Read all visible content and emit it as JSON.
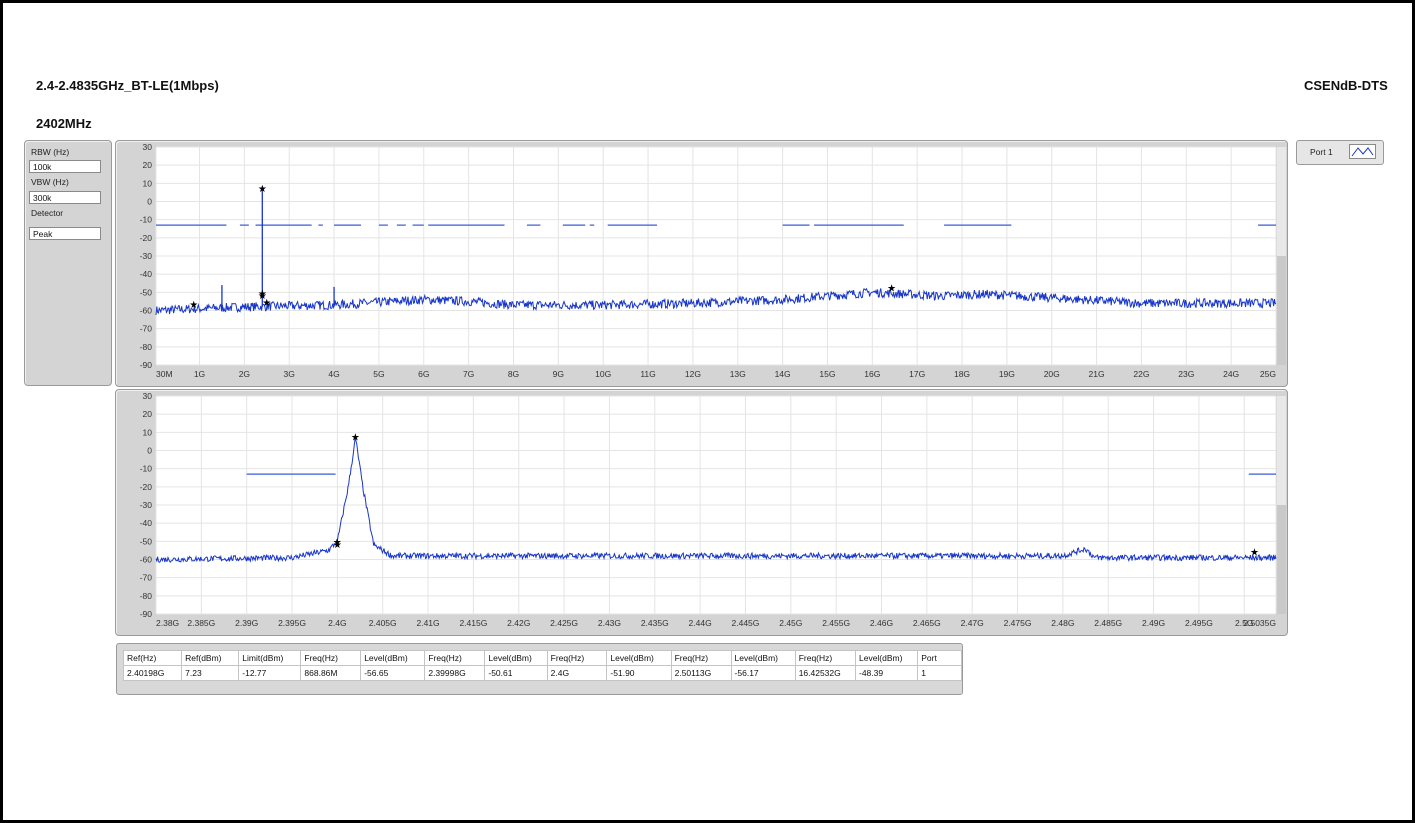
{
  "header": {
    "title": "2.4-2.4835GHz_BT-LE(1Mbps)",
    "test_name": "CSENdB-DTS",
    "channel": "2402MHz"
  },
  "settings": {
    "rbw_label": "RBW (Hz)",
    "rbw_value": "100k",
    "vbw_label": "VBW (Hz)",
    "vbw_value": "300k",
    "detector_label": "Detector",
    "detector_value": "Peak"
  },
  "legend": {
    "port_label": "Port 1",
    "trace_color": "#1836c8"
  },
  "colors": {
    "trace": "#1836c8",
    "limit": "#3a5ad8",
    "grid": "#e4e4e4",
    "plot_bg": "#ffffff",
    "panel": "#d4d4d4"
  },
  "chart_data": [
    {
      "type": "line",
      "name": "overview",
      "xlim": [
        0.03,
        25
      ],
      "ylim": [
        -90,
        30
      ],
      "x_tick_values": [
        0.03,
        1,
        2,
        3,
        4,
        5,
        6,
        7,
        8,
        9,
        10,
        11,
        12,
        13,
        14,
        15,
        16,
        17,
        18,
        19,
        20,
        21,
        22,
        23,
        24,
        25
      ],
      "x_tick_labels": [
        "30M",
        "1G",
        "2G",
        "3G",
        "4G",
        "5G",
        "6G",
        "7G",
        "8G",
        "9G",
        "10G",
        "11G",
        "12G",
        "13G",
        "14G",
        "15G",
        "16G",
        "17G",
        "18G",
        "19G",
        "20G",
        "21G",
        "22G",
        "23G",
        "24G",
        "25G"
      ],
      "y_ticks": [
        30,
        20,
        10,
        0,
        -10,
        -20,
        -30,
        -40,
        -50,
        -60,
        -70,
        -80,
        -90
      ],
      "x_unit": "GHz",
      "limit_level": -13,
      "limit_segments": [
        [
          0.03,
          1.6
        ],
        [
          1.9,
          2.1
        ],
        [
          2.25,
          3.5
        ],
        [
          3.65,
          3.75
        ],
        [
          4.0,
          4.6
        ],
        [
          5.0,
          5.2
        ],
        [
          5.4,
          5.6
        ],
        [
          5.75,
          6.0
        ],
        [
          6.1,
          7.8
        ],
        [
          8.3,
          8.6
        ],
        [
          9.1,
          9.6
        ],
        [
          9.7,
          9.8
        ],
        [
          10.1,
          11.2
        ],
        [
          14.0,
          14.6
        ],
        [
          14.7,
          16.7
        ],
        [
          17.6,
          19.1
        ],
        [
          24.6,
          25.2
        ],
        [
          26.4,
          26.9
        ],
        [
          27.5,
          28.5
        ]
      ],
      "trace": {
        "baseline": [
          [
            0.03,
            -60
          ],
          [
            2,
            -58
          ],
          [
            4,
            -57
          ],
          [
            6,
            -54
          ],
          [
            7,
            -55
          ],
          [
            8,
            -57
          ],
          [
            10,
            -57
          ],
          [
            12,
            -56
          ],
          [
            14,
            -54
          ],
          [
            16,
            -50
          ],
          [
            17.5,
            -52
          ],
          [
            18.5,
            -51
          ],
          [
            20,
            -53
          ],
          [
            22,
            -56
          ],
          [
            25,
            -56
          ]
        ],
        "noise_dbm": 2.5
      },
      "spikes": [
        [
          1.5,
          -46
        ],
        [
          2.4,
          7
        ],
        [
          4.0,
          -47
        ]
      ],
      "markers": [
        [
          0.87,
          -57
        ],
        [
          2.4,
          7
        ],
        [
          2.4,
          -51
        ],
        [
          2.4,
          -52
        ],
        [
          2.5,
          -56
        ],
        [
          16.43,
          -48
        ]
      ]
    },
    {
      "type": "line",
      "name": "zoom",
      "xlim": [
        2.38,
        2.5035
      ],
      "ylim": [
        -90,
        30
      ],
      "x_tick_values": [
        2.38,
        2.385,
        2.39,
        2.395,
        2.4,
        2.405,
        2.41,
        2.415,
        2.42,
        2.425,
        2.43,
        2.435,
        2.44,
        2.445,
        2.45,
        2.455,
        2.46,
        2.465,
        2.47,
        2.475,
        2.48,
        2.485,
        2.49,
        2.495,
        2.5,
        2.5035
      ],
      "x_tick_labels": [
        "2.38G",
        "2.385G",
        "2.39G",
        "2.395G",
        "2.4G",
        "2.405G",
        "2.41G",
        "2.415G",
        "2.42G",
        "2.425G",
        "2.43G",
        "2.435G",
        "2.44G",
        "2.445G",
        "2.45G",
        "2.455G",
        "2.46G",
        "2.465G",
        "2.47G",
        "2.475G",
        "2.48G",
        "2.485G",
        "2.49G",
        "2.495G",
        "2.5G",
        "2.5035G"
      ],
      "y_ticks": [
        30,
        20,
        10,
        0,
        -10,
        -20,
        -30,
        -40,
        -50,
        -60,
        -70,
        -80,
        -90
      ],
      "x_unit": "GHz",
      "limit_level": -13,
      "limit_segments": [
        [
          2.39,
          2.3998
        ],
        [
          2.5005,
          2.5035
        ]
      ],
      "trace": {
        "baseline": [
          [
            2.38,
            -60
          ],
          [
            2.395,
            -59
          ],
          [
            2.399,
            -55
          ],
          [
            2.4,
            -50
          ],
          [
            2.4012,
            -20
          ],
          [
            2.402,
            7
          ],
          [
            2.4028,
            -20
          ],
          [
            2.404,
            -52
          ],
          [
            2.406,
            -58
          ],
          [
            2.44,
            -58
          ],
          [
            2.48,
            -58
          ],
          [
            2.4825,
            -54
          ],
          [
            2.4835,
            -59
          ],
          [
            2.5035,
            -59
          ]
        ],
        "noise_dbm": 1.6
      },
      "spikes": [],
      "markers": [
        [
          2.40198,
          7.23
        ],
        [
          2.39998,
          -50.61
        ],
        [
          2.4,
          -51.9
        ],
        [
          2.50113,
          -56.17
        ]
      ]
    }
  ],
  "results": {
    "headers": [
      "Ref(Hz)",
      "Ref(dBm)",
      "Limit(dBm)",
      "Freq(Hz)",
      "Level(dBm)",
      "Freq(Hz)",
      "Level(dBm)",
      "Freq(Hz)",
      "Level(dBm)",
      "Freq(Hz)",
      "Level(dBm)",
      "Freq(Hz)",
      "Level(dBm)",
      "Port"
    ],
    "row": [
      "2.40198G",
      "7.23",
      "-12.77",
      "868.86M",
      "-56.65",
      "2.39998G",
      "-50.61",
      "2.4G",
      "-51.90",
      "2.50113G",
      "-56.17",
      "16.42532G",
      "-48.39",
      "1"
    ]
  }
}
